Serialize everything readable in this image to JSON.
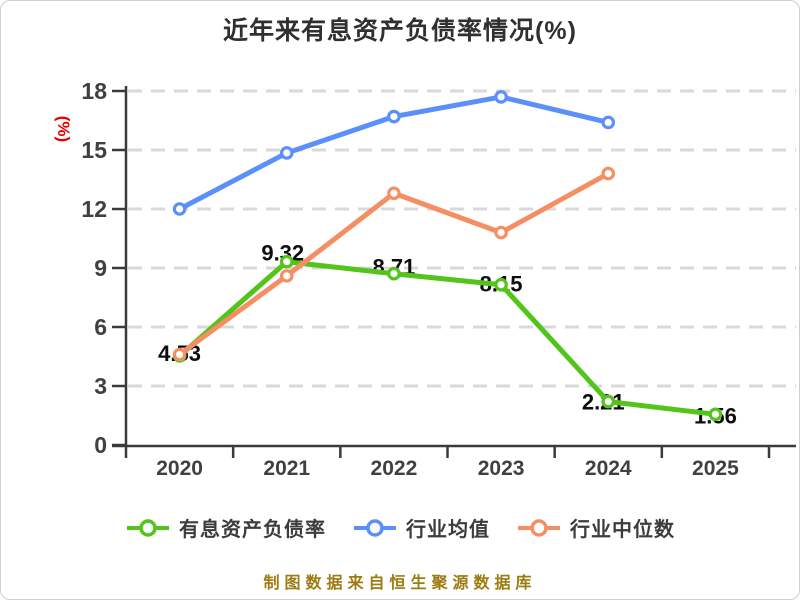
{
  "title": "近年来有息资产负债率情况(%)",
  "y_axis_unit": "(%)",
  "source_note": "制图数据来自恒生聚源数据库",
  "colors": {
    "grid": "#d9d9d9",
    "axis": "#3a3a3a",
    "tick_text": "#404040",
    "data_label": "#0d0d0d",
    "title_text": "#303030",
    "unit_label": "#e60000",
    "source_text": "#9c7c10"
  },
  "chart_data": {
    "type": "line",
    "title": "近年来有息资产负债率情况(%)",
    "xlabel": "",
    "ylabel": "(%)",
    "x_labels": [
      "2020",
      "2021",
      "2022",
      "2023",
      "2024",
      "2025"
    ],
    "y_ticks": [
      0,
      3,
      6,
      9,
      12,
      15,
      18
    ],
    "ylim": [
      0,
      18
    ],
    "grid": "horizontal-dashed",
    "legend_position": "bottom",
    "series": [
      {
        "name": "有息资产负债率",
        "color": "#52c41a",
        "values": [
          4.53,
          9.32,
          8.71,
          8.15,
          2.21,
          1.56
        ],
        "point_labels": [
          "4.53",
          "9.32",
          "8.71",
          "8.15",
          "2.21",
          "1.56"
        ]
      },
      {
        "name": "行业均值",
        "color": "#5b8ff9",
        "values": [
          12.0,
          14.85,
          16.7,
          17.7,
          16.4,
          null
        ],
        "point_labels": []
      },
      {
        "name": "行业中位数",
        "color": "#f58e63",
        "values": [
          4.6,
          8.6,
          12.8,
          10.8,
          13.8,
          null
        ],
        "point_labels": []
      }
    ]
  }
}
